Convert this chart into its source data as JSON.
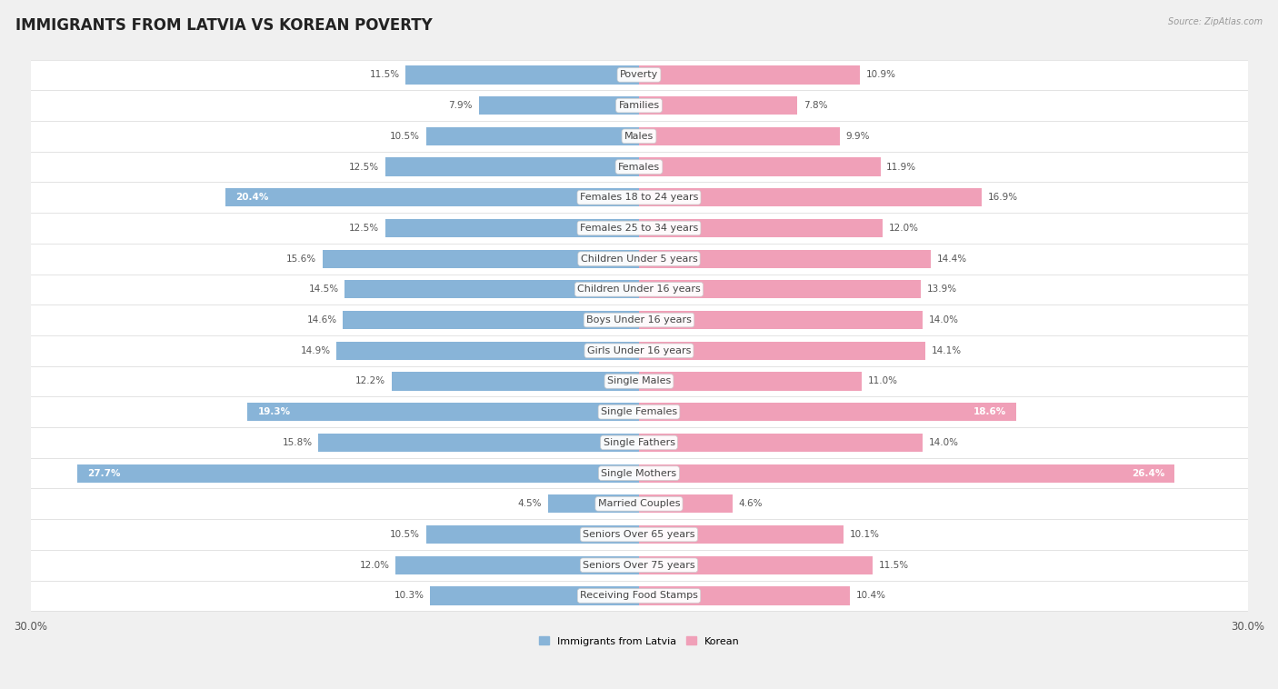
{
  "title": "IMMIGRANTS FROM LATVIA VS KOREAN POVERTY",
  "source": "Source: ZipAtlas.com",
  "categories": [
    "Poverty",
    "Families",
    "Males",
    "Females",
    "Females 18 to 24 years",
    "Females 25 to 34 years",
    "Children Under 5 years",
    "Children Under 16 years",
    "Boys Under 16 years",
    "Girls Under 16 years",
    "Single Males",
    "Single Females",
    "Single Fathers",
    "Single Mothers",
    "Married Couples",
    "Seniors Over 65 years",
    "Seniors Over 75 years",
    "Receiving Food Stamps"
  ],
  "latvia_values": [
    11.5,
    7.9,
    10.5,
    12.5,
    20.4,
    12.5,
    15.6,
    14.5,
    14.6,
    14.9,
    12.2,
    19.3,
    15.8,
    27.7,
    4.5,
    10.5,
    12.0,
    10.3
  ],
  "korean_values": [
    10.9,
    7.8,
    9.9,
    11.9,
    16.9,
    12.0,
    14.4,
    13.9,
    14.0,
    14.1,
    11.0,
    18.6,
    14.0,
    26.4,
    4.6,
    10.1,
    11.5,
    10.4
  ],
  "latvia_color": "#88b4d8",
  "korean_color": "#f0a0b8",
  "latvia_label": "Immigrants from Latvia",
  "korean_label": "Korean",
  "axis_max": 30.0,
  "background_color": "#f0f0f0",
  "row_color": "#ffffff",
  "row_alt_color": "#f8f8f8",
  "bar_height": 0.6,
  "title_fontsize": 12,
  "label_fontsize": 8.0,
  "value_fontsize": 7.5,
  "axis_label_fontsize": 8.5,
  "white_label_threshold": 18.0
}
